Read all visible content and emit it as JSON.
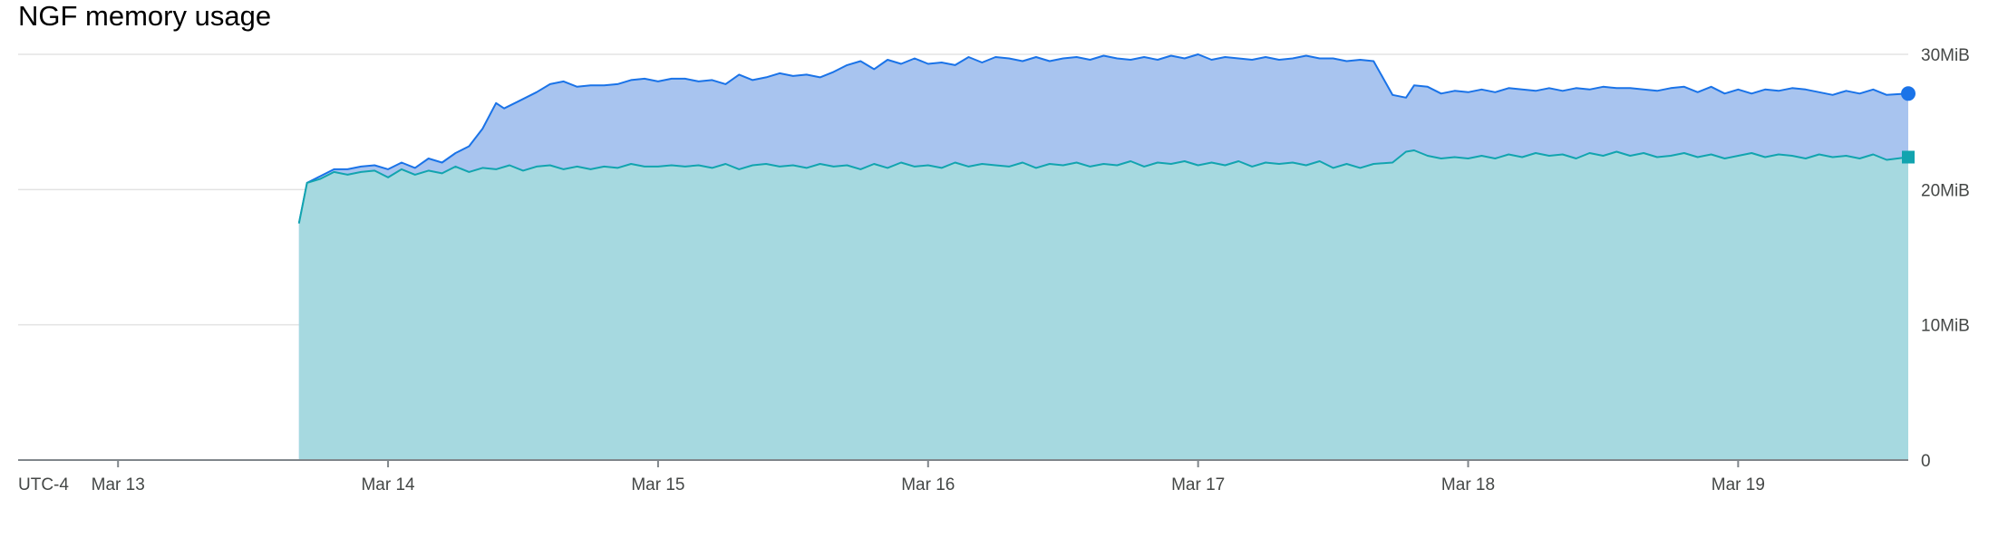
{
  "chart_data": {
    "type": "area",
    "title": "NGF memory usage",
    "timezone_label": "UTC-4",
    "x_ticks": [
      "Mar 13",
      "Mar 14",
      "Mar 15",
      "Mar 16",
      "Mar 17",
      "Mar 18",
      "Mar 19"
    ],
    "y_ticks": [
      "0",
      "10MiB",
      "20MiB",
      "30MiB"
    ],
    "xlim": [
      12.63,
      19.63
    ],
    "ylim": [
      0,
      30
    ],
    "y_unit": "MiB",
    "grid": "horizontal",
    "stacked": false,
    "series": [
      {
        "color": "#1a73e8",
        "fill": "#a8c4ef",
        "marker": "circle",
        "points": [
          [
            13.67,
            17.5
          ],
          [
            13.7,
            20.5
          ],
          [
            13.75,
            21.0
          ],
          [
            13.8,
            21.5
          ],
          [
            13.85,
            21.5
          ],
          [
            13.9,
            21.7
          ],
          [
            13.95,
            21.8
          ],
          [
            14.0,
            21.5
          ],
          [
            14.05,
            22.0
          ],
          [
            14.1,
            21.6
          ],
          [
            14.15,
            22.3
          ],
          [
            14.2,
            22.0
          ],
          [
            14.25,
            22.7
          ],
          [
            14.3,
            23.2
          ],
          [
            14.35,
            24.5
          ],
          [
            14.4,
            26.4
          ],
          [
            14.43,
            26.0
          ],
          [
            14.48,
            26.5
          ],
          [
            14.55,
            27.2
          ],
          [
            14.6,
            27.8
          ],
          [
            14.65,
            28.0
          ],
          [
            14.7,
            27.6
          ],
          [
            14.75,
            27.7
          ],
          [
            14.8,
            27.7
          ],
          [
            14.85,
            27.8
          ],
          [
            14.9,
            28.1
          ],
          [
            14.95,
            28.2
          ],
          [
            15.0,
            28.0
          ],
          [
            15.05,
            28.2
          ],
          [
            15.1,
            28.2
          ],
          [
            15.15,
            28.0
          ],
          [
            15.2,
            28.1
          ],
          [
            15.25,
            27.8
          ],
          [
            15.3,
            28.5
          ],
          [
            15.35,
            28.1
          ],
          [
            15.4,
            28.3
          ],
          [
            15.45,
            28.6
          ],
          [
            15.5,
            28.4
          ],
          [
            15.55,
            28.5
          ],
          [
            15.6,
            28.3
          ],
          [
            15.65,
            28.7
          ],
          [
            15.7,
            29.2
          ],
          [
            15.75,
            29.5
          ],
          [
            15.8,
            28.9
          ],
          [
            15.85,
            29.6
          ],
          [
            15.9,
            29.3
          ],
          [
            15.95,
            29.7
          ],
          [
            16.0,
            29.3
          ],
          [
            16.05,
            29.4
          ],
          [
            16.1,
            29.2
          ],
          [
            16.15,
            29.8
          ],
          [
            16.2,
            29.4
          ],
          [
            16.25,
            29.8
          ],
          [
            16.3,
            29.7
          ],
          [
            16.35,
            29.5
          ],
          [
            16.4,
            29.8
          ],
          [
            16.45,
            29.5
          ],
          [
            16.5,
            29.7
          ],
          [
            16.55,
            29.8
          ],
          [
            16.6,
            29.6
          ],
          [
            16.65,
            29.9
          ],
          [
            16.7,
            29.7
          ],
          [
            16.75,
            29.6
          ],
          [
            16.8,
            29.8
          ],
          [
            16.85,
            29.6
          ],
          [
            16.9,
            29.9
          ],
          [
            16.95,
            29.7
          ],
          [
            17.0,
            30.0
          ],
          [
            17.05,
            29.6
          ],
          [
            17.1,
            29.8
          ],
          [
            17.15,
            29.7
          ],
          [
            17.2,
            29.6
          ],
          [
            17.25,
            29.8
          ],
          [
            17.3,
            29.6
          ],
          [
            17.35,
            29.7
          ],
          [
            17.4,
            29.9
          ],
          [
            17.45,
            29.7
          ],
          [
            17.5,
            29.7
          ],
          [
            17.55,
            29.5
          ],
          [
            17.6,
            29.6
          ],
          [
            17.65,
            29.5
          ],
          [
            17.72,
            27.0
          ],
          [
            17.77,
            26.8
          ],
          [
            17.8,
            27.7
          ],
          [
            17.85,
            27.6
          ],
          [
            17.9,
            27.1
          ],
          [
            17.95,
            27.3
          ],
          [
            18.0,
            27.2
          ],
          [
            18.05,
            27.4
          ],
          [
            18.1,
            27.2
          ],
          [
            18.15,
            27.5
          ],
          [
            18.2,
            27.4
          ],
          [
            18.25,
            27.3
          ],
          [
            18.3,
            27.5
          ],
          [
            18.35,
            27.3
          ],
          [
            18.4,
            27.5
          ],
          [
            18.45,
            27.4
          ],
          [
            18.5,
            27.6
          ],
          [
            18.55,
            27.5
          ],
          [
            18.6,
            27.5
          ],
          [
            18.65,
            27.4
          ],
          [
            18.7,
            27.3
          ],
          [
            18.75,
            27.5
          ],
          [
            18.8,
            27.6
          ],
          [
            18.85,
            27.2
          ],
          [
            18.9,
            27.6
          ],
          [
            18.95,
            27.1
          ],
          [
            19.0,
            27.4
          ],
          [
            19.05,
            27.1
          ],
          [
            19.1,
            27.4
          ],
          [
            19.15,
            27.3
          ],
          [
            19.2,
            27.5
          ],
          [
            19.25,
            27.4
          ],
          [
            19.3,
            27.2
          ],
          [
            19.35,
            27.0
          ],
          [
            19.4,
            27.3
          ],
          [
            19.45,
            27.1
          ],
          [
            19.5,
            27.4
          ],
          [
            19.55,
            27.0
          ],
          [
            19.63,
            27.1
          ]
        ]
      },
      {
        "color": "#12a4af",
        "fill": "#a6d9e0",
        "marker": "square",
        "points": [
          [
            13.67,
            17.5
          ],
          [
            13.7,
            20.5
          ],
          [
            13.75,
            20.8
          ],
          [
            13.8,
            21.3
          ],
          [
            13.85,
            21.1
          ],
          [
            13.9,
            21.3
          ],
          [
            13.95,
            21.4
          ],
          [
            14.0,
            20.9
          ],
          [
            14.05,
            21.5
          ],
          [
            14.1,
            21.1
          ],
          [
            14.15,
            21.4
          ],
          [
            14.2,
            21.2
          ],
          [
            14.25,
            21.7
          ],
          [
            14.3,
            21.3
          ],
          [
            14.35,
            21.6
          ],
          [
            14.4,
            21.5
          ],
          [
            14.45,
            21.8
          ],
          [
            14.5,
            21.4
          ],
          [
            14.55,
            21.7
          ],
          [
            14.6,
            21.8
          ],
          [
            14.65,
            21.5
          ],
          [
            14.7,
            21.7
          ],
          [
            14.75,
            21.5
          ],
          [
            14.8,
            21.7
          ],
          [
            14.85,
            21.6
          ],
          [
            14.9,
            21.9
          ],
          [
            14.95,
            21.7
          ],
          [
            15.0,
            21.7
          ],
          [
            15.05,
            21.8
          ],
          [
            15.1,
            21.7
          ],
          [
            15.15,
            21.8
          ],
          [
            15.2,
            21.6
          ],
          [
            15.25,
            21.9
          ],
          [
            15.3,
            21.5
          ],
          [
            15.35,
            21.8
          ],
          [
            15.4,
            21.9
          ],
          [
            15.45,
            21.7
          ],
          [
            15.5,
            21.8
          ],
          [
            15.55,
            21.6
          ],
          [
            15.6,
            21.9
          ],
          [
            15.65,
            21.7
          ],
          [
            15.7,
            21.8
          ],
          [
            15.75,
            21.5
          ],
          [
            15.8,
            21.9
          ],
          [
            15.85,
            21.6
          ],
          [
            15.9,
            22.0
          ],
          [
            15.95,
            21.7
          ],
          [
            16.0,
            21.8
          ],
          [
            16.05,
            21.6
          ],
          [
            16.1,
            22.0
          ],
          [
            16.15,
            21.7
          ],
          [
            16.2,
            21.9
          ],
          [
            16.25,
            21.8
          ],
          [
            16.3,
            21.7
          ],
          [
            16.35,
            22.0
          ],
          [
            16.4,
            21.6
          ],
          [
            16.45,
            21.9
          ],
          [
            16.5,
            21.8
          ],
          [
            16.55,
            22.0
          ],
          [
            16.6,
            21.7
          ],
          [
            16.65,
            21.9
          ],
          [
            16.7,
            21.8
          ],
          [
            16.75,
            22.1
          ],
          [
            16.8,
            21.7
          ],
          [
            16.85,
            22.0
          ],
          [
            16.9,
            21.9
          ],
          [
            16.95,
            22.1
          ],
          [
            17.0,
            21.8
          ],
          [
            17.05,
            22.0
          ],
          [
            17.1,
            21.8
          ],
          [
            17.15,
            22.1
          ],
          [
            17.2,
            21.7
          ],
          [
            17.25,
            22.0
          ],
          [
            17.3,
            21.9
          ],
          [
            17.35,
            22.0
          ],
          [
            17.4,
            21.8
          ],
          [
            17.45,
            22.1
          ],
          [
            17.5,
            21.6
          ],
          [
            17.55,
            21.9
          ],
          [
            17.6,
            21.6
          ],
          [
            17.65,
            21.9
          ],
          [
            17.72,
            22.0
          ],
          [
            17.77,
            22.8
          ],
          [
            17.8,
            22.9
          ],
          [
            17.85,
            22.5
          ],
          [
            17.9,
            22.3
          ],
          [
            17.95,
            22.4
          ],
          [
            18.0,
            22.3
          ],
          [
            18.05,
            22.5
          ],
          [
            18.1,
            22.3
          ],
          [
            18.15,
            22.6
          ],
          [
            18.2,
            22.4
          ],
          [
            18.25,
            22.7
          ],
          [
            18.3,
            22.5
          ],
          [
            18.35,
            22.6
          ],
          [
            18.4,
            22.3
          ],
          [
            18.45,
            22.7
          ],
          [
            18.5,
            22.5
          ],
          [
            18.55,
            22.8
          ],
          [
            18.6,
            22.5
          ],
          [
            18.65,
            22.7
          ],
          [
            18.7,
            22.4
          ],
          [
            18.75,
            22.5
          ],
          [
            18.8,
            22.7
          ],
          [
            18.85,
            22.4
          ],
          [
            18.9,
            22.6
          ],
          [
            18.95,
            22.3
          ],
          [
            19.0,
            22.5
          ],
          [
            19.05,
            22.7
          ],
          [
            19.1,
            22.4
          ],
          [
            19.15,
            22.6
          ],
          [
            19.2,
            22.5
          ],
          [
            19.25,
            22.3
          ],
          [
            19.3,
            22.6
          ],
          [
            19.35,
            22.4
          ],
          [
            19.4,
            22.5
          ],
          [
            19.45,
            22.3
          ],
          [
            19.5,
            22.6
          ],
          [
            19.55,
            22.2
          ],
          [
            19.63,
            22.4
          ]
        ]
      }
    ]
  }
}
